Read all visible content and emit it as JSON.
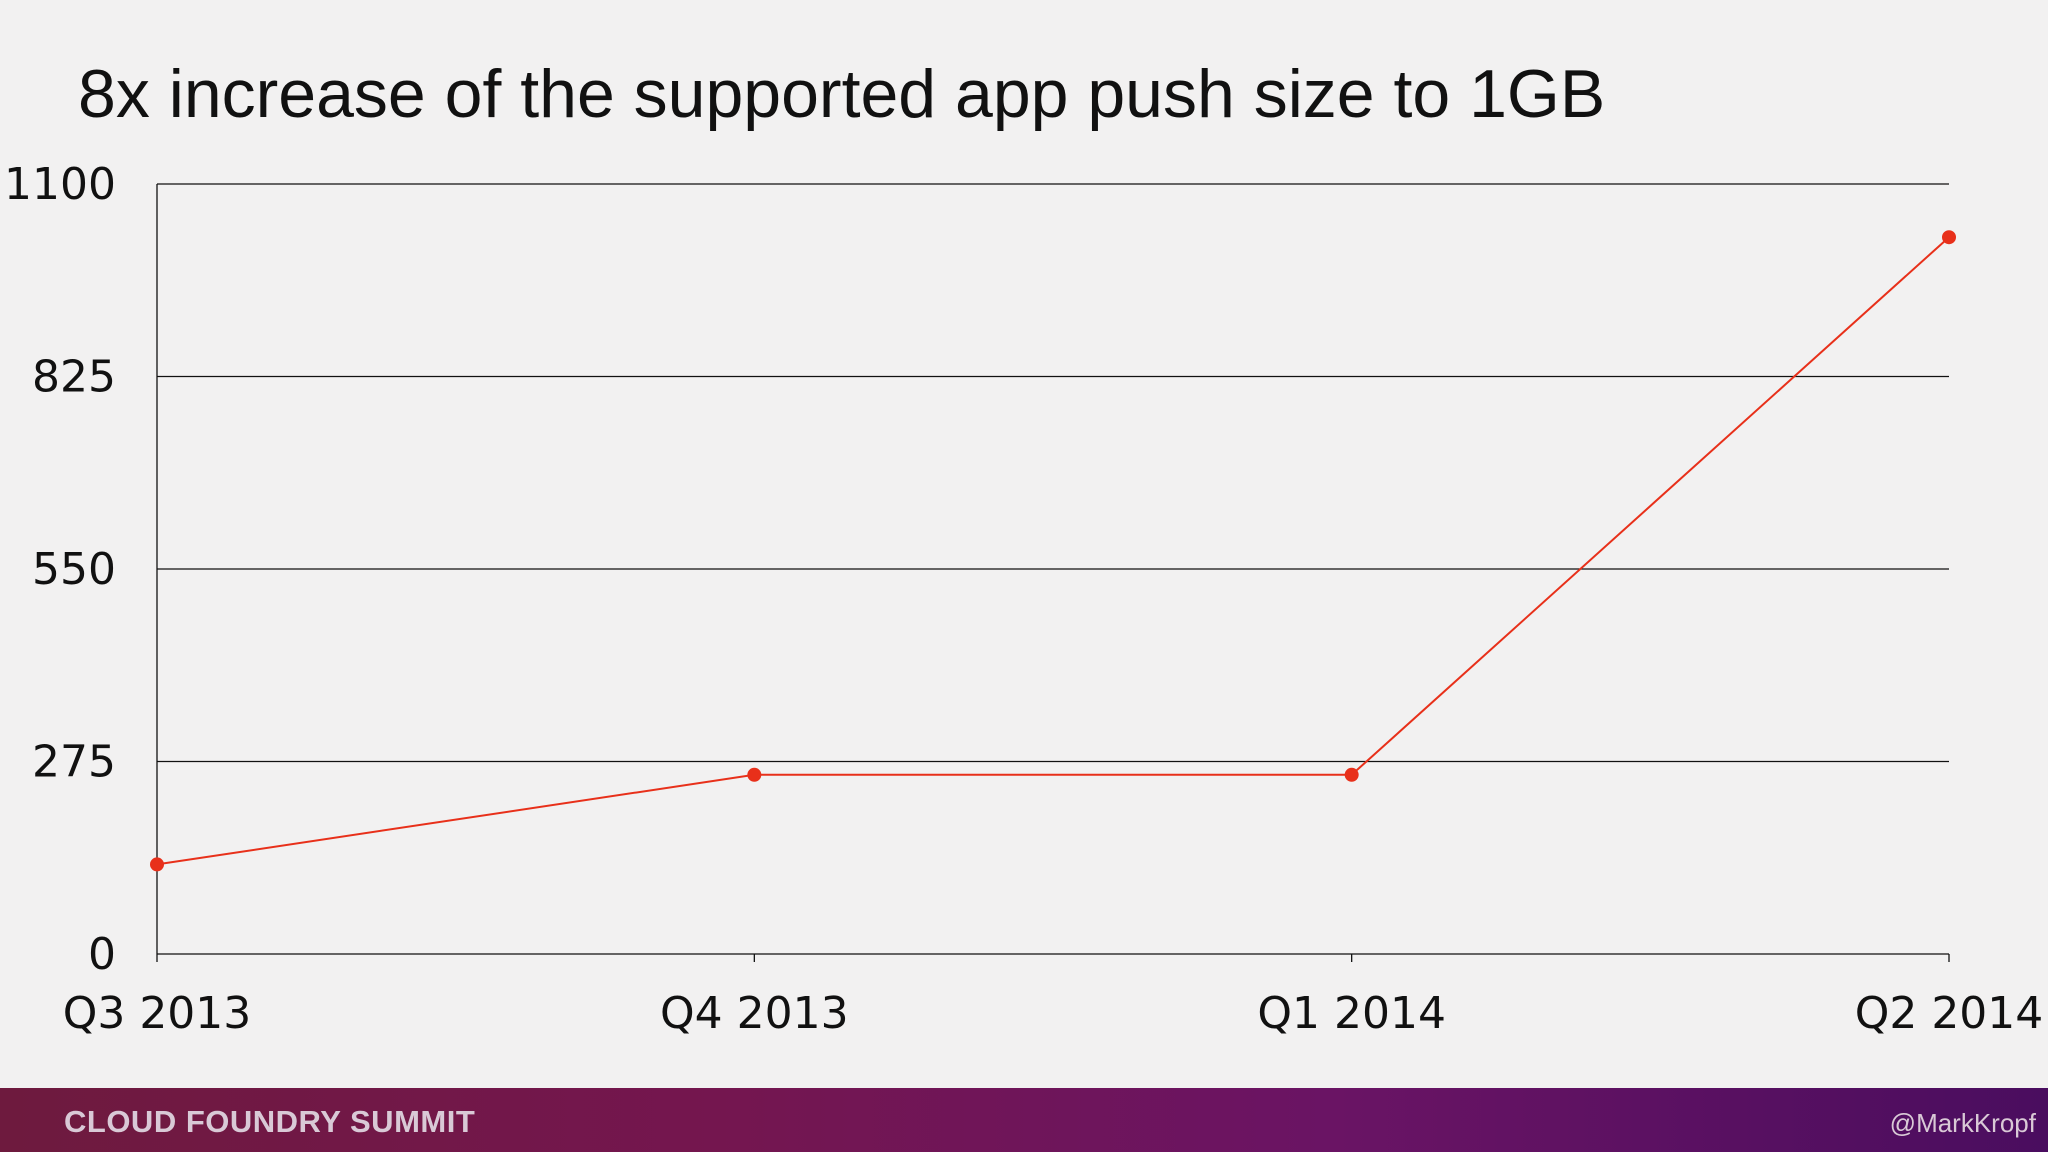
{
  "slide": {
    "title": "8x increase of the supported app push size to 1GB"
  },
  "footer": {
    "brand": "CLOUD FOUNDRY SUMMIT",
    "handle": "@MarkKropf"
  },
  "chart_data": {
    "type": "line",
    "title": "8x increase of the supported app push size to 1GB",
    "xlabel": "",
    "ylabel": "",
    "categories": [
      "Q3 2013",
      "Q4 2013",
      "Q1 2014",
      "Q2 2014"
    ],
    "series": [
      {
        "values": [
          128,
          256,
          256,
          1024
        ],
        "color": "#e8301a"
      }
    ],
    "ylim": [
      0,
      1100
    ],
    "yticks": [
      "0",
      "275",
      "550",
      "825",
      "1100"
    ],
    "grid": true,
    "legend": "none"
  }
}
